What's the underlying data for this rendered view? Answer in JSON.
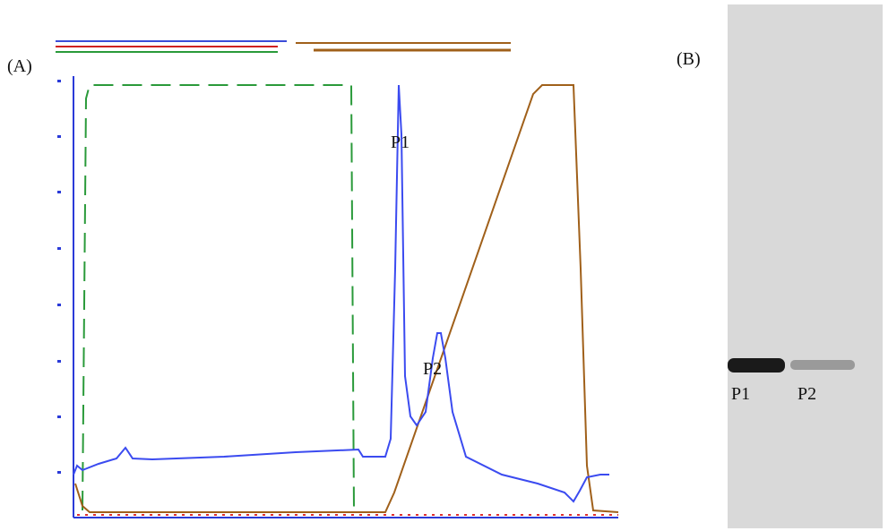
{
  "panel_a": {
    "label": "(A)",
    "peaks": [
      "P1",
      "P2"
    ]
  },
  "panel_b": {
    "label": "(B)",
    "bands": [
      "P1",
      "P2"
    ]
  }
}
